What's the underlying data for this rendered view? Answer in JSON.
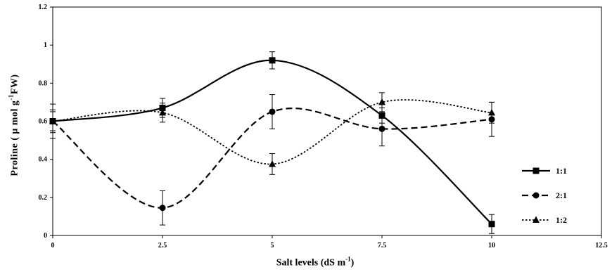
{
  "chart_data": {
    "type": "line",
    "xlabel": {
      "main": "Salt levels (dS m",
      "sup": "-1",
      "end": ")"
    },
    "ylabel": {
      "main": "Proline ( μ mol g",
      "sup": "-1",
      "end": "FW)"
    },
    "xlim": [
      0,
      12.5
    ],
    "ylim": [
      0,
      1.2
    ],
    "xticks": [
      0,
      2.5,
      5,
      7.5,
      10,
      12.5
    ],
    "xtick_labels": [
      "0",
      "2.5",
      "5",
      "7.5",
      "10",
      "12.5"
    ],
    "yticks": [
      0,
      0.2,
      0.4,
      0.6,
      0.8,
      1,
      1.2
    ],
    "ytick_labels": [
      "0",
      "0.2",
      "0.4",
      "0.6",
      "0.8",
      "1",
      "1.2"
    ],
    "grid": false,
    "legend_position": "right",
    "x": [
      0,
      2.5,
      5,
      7.5,
      10
    ],
    "series": [
      {
        "name": "1:1",
        "marker": "square",
        "dash": "solid",
        "values": [
          0.6,
          0.67,
          0.92,
          0.63,
          0.06
        ],
        "errors": [
          0.09,
          0.05,
          0.045,
          0.04,
          0.05
        ]
      },
      {
        "name": "2:1",
        "marker": "circle",
        "dash": "dashed",
        "values": [
          0.6,
          0.145,
          0.65,
          0.56,
          0.61
        ],
        "errors": [
          0.06,
          0.09,
          0.09,
          0.09,
          0.09
        ]
      },
      {
        "name": "1:2",
        "marker": "triangle",
        "dash": "dotted",
        "values": [
          0.6,
          0.645,
          0.375,
          0.7,
          0.645
        ],
        "errors": [
          0.05,
          0.05,
          0.055,
          0.05,
          0.055
        ]
      }
    ]
  }
}
